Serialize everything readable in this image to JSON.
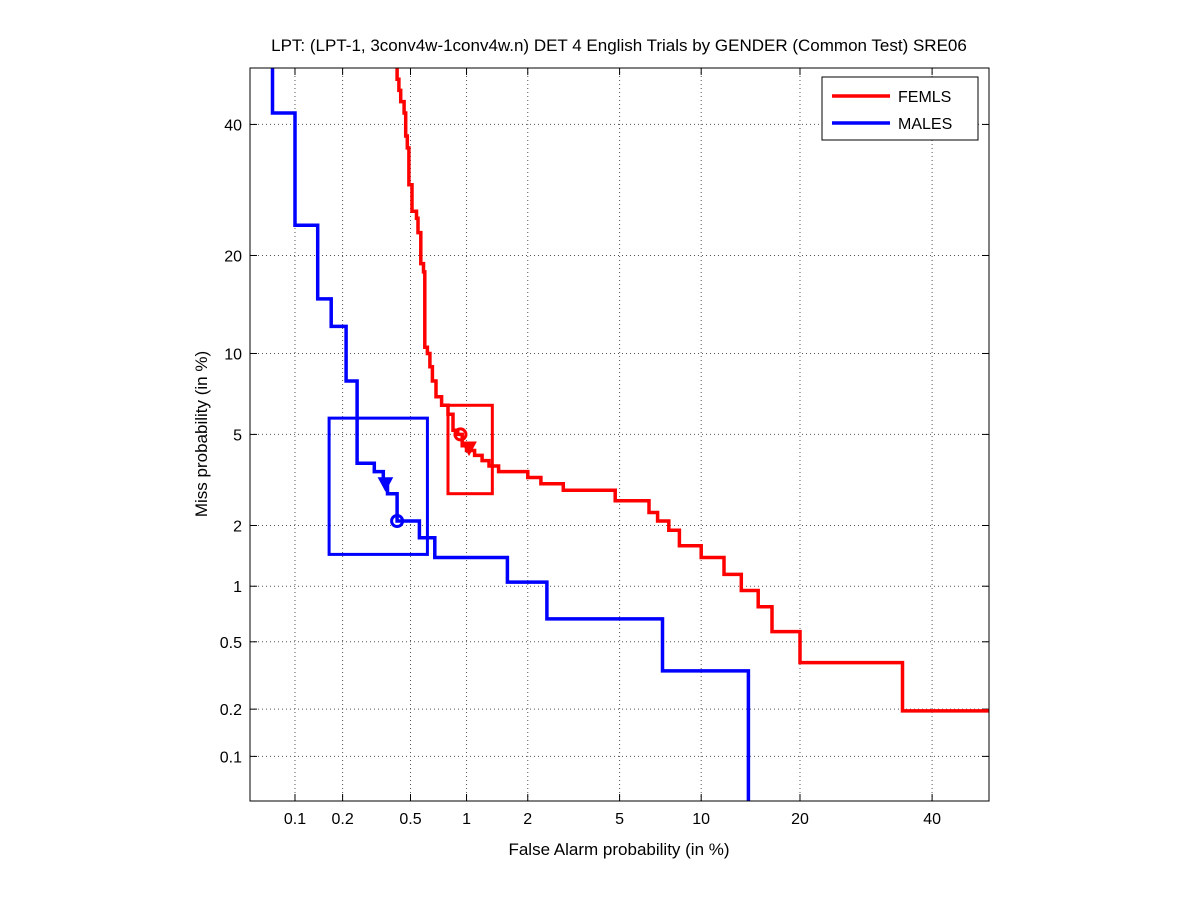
{
  "chart_data": {
    "type": "line",
    "subtype": "DET curve (normal deviate scale)",
    "title": "LPT: (LPT-1, 3conv4w-1conv4w.n) DET 4 English Trials by GENDER (Common Test) SRE06",
    "xlabel": "False Alarm probability (in %)",
    "ylabel": "Miss probability (in %)",
    "xlim": [
      0.05,
      50
    ],
    "ylim": [
      0.05,
      50
    ],
    "x_ticks": [
      0.1,
      0.2,
      0.5,
      1,
      2,
      5,
      10,
      20,
      40
    ],
    "x_tick_labels": [
      "0.1",
      "0.2",
      "0.5",
      "1",
      "2",
      "5",
      "10",
      "20",
      "40"
    ],
    "y_ticks": [
      0.1,
      0.2,
      0.5,
      1,
      2,
      5,
      10,
      20,
      40
    ],
    "y_tick_labels": [
      "0.1",
      "0.2",
      "0.5",
      "1",
      "2",
      "5",
      "10",
      "20",
      "40"
    ],
    "grid": true,
    "legend_position": "top-right",
    "series": [
      {
        "name": "FEMLS",
        "color": "#ff0000",
        "points": [
          [
            0.42,
            50
          ],
          [
            0.42,
            48
          ],
          [
            0.43,
            48
          ],
          [
            0.43,
            46
          ],
          [
            0.44,
            46
          ],
          [
            0.44,
            44
          ],
          [
            0.46,
            44
          ],
          [
            0.46,
            42
          ],
          [
            0.47,
            42
          ],
          [
            0.47,
            38
          ],
          [
            0.48,
            38
          ],
          [
            0.48,
            36
          ],
          [
            0.49,
            36
          ],
          [
            0.49,
            30
          ],
          [
            0.51,
            30
          ],
          [
            0.51,
            26
          ],
          [
            0.54,
            26
          ],
          [
            0.54,
            25
          ],
          [
            0.55,
            25
          ],
          [
            0.55,
            23
          ],
          [
            0.57,
            23
          ],
          [
            0.57,
            19
          ],
          [
            0.59,
            19
          ],
          [
            0.59,
            18
          ],
          [
            0.6,
            18
          ],
          [
            0.6,
            10.5
          ],
          [
            0.62,
            10.5
          ],
          [
            0.62,
            10
          ],
          [
            0.64,
            10
          ],
          [
            0.64,
            9
          ],
          [
            0.66,
            9
          ],
          [
            0.66,
            8
          ],
          [
            0.69,
            8
          ],
          [
            0.69,
            7
          ],
          [
            0.74,
            7
          ],
          [
            0.74,
            6.5
          ],
          [
            0.8,
            6.5
          ],
          [
            0.8,
            6
          ],
          [
            0.85,
            6
          ],
          [
            0.85,
            5.2
          ],
          [
            0.9,
            5.2
          ],
          [
            0.9,
            5
          ],
          [
            0.95,
            5
          ],
          [
            0.95,
            4.5
          ],
          [
            1.0,
            4.5
          ],
          [
            1.0,
            4.3
          ],
          [
            1.1,
            4.3
          ],
          [
            1.1,
            4.1
          ],
          [
            1.2,
            4.1
          ],
          [
            1.2,
            3.9
          ],
          [
            1.3,
            3.9
          ],
          [
            1.3,
            3.7
          ],
          [
            1.45,
            3.7
          ],
          [
            1.45,
            3.5
          ],
          [
            2.0,
            3.5
          ],
          [
            2.0,
            3.3
          ],
          [
            2.3,
            3.3
          ],
          [
            2.3,
            3.1
          ],
          [
            2.9,
            3.1
          ],
          [
            2.9,
            2.9
          ],
          [
            4.8,
            2.9
          ],
          [
            4.8,
            2.6
          ],
          [
            6.5,
            2.6
          ],
          [
            6.5,
            2.3
          ],
          [
            7.0,
            2.3
          ],
          [
            7.0,
            2.1
          ],
          [
            7.7,
            2.1
          ],
          [
            7.7,
            1.9
          ],
          [
            8.4,
            1.9
          ],
          [
            8.4,
            1.6
          ],
          [
            10.0,
            1.6
          ],
          [
            10.0,
            1.4
          ],
          [
            11.9,
            1.4
          ],
          [
            11.9,
            1.15
          ],
          [
            13.5,
            1.15
          ],
          [
            13.5,
            0.95
          ],
          [
            15.2,
            0.95
          ],
          [
            15.2,
            0.78
          ],
          [
            16.7,
            0.78
          ],
          [
            16.7,
            0.57
          ],
          [
            20.0,
            0.57
          ],
          [
            20.0,
            0.38
          ],
          [
            35.0,
            0.38
          ],
          [
            35.0,
            0.195
          ],
          [
            50,
            0.195
          ]
        ],
        "actual_decision_marker": {
          "x": 1.03,
          "y": 4.4,
          "shape": "triangle-down"
        },
        "min_dcf_marker": {
          "x": 0.93,
          "y": 5.0,
          "shape": "circle"
        },
        "confidence_box": {
          "x": [
            0.8,
            1.35
          ],
          "y": [
            2.8,
            6.5
          ]
        }
      },
      {
        "name": "MALES",
        "color": "#0000ff",
        "points": [
          [
            0.071,
            50
          ],
          [
            0.071,
            42
          ],
          [
            0.1,
            42
          ],
          [
            0.1,
            24
          ],
          [
            0.14,
            24
          ],
          [
            0.14,
            15
          ],
          [
            0.17,
            15
          ],
          [
            0.17,
            12.3
          ],
          [
            0.21,
            12.3
          ],
          [
            0.21,
            8
          ],
          [
            0.245,
            8
          ],
          [
            0.245,
            3.8
          ],
          [
            0.31,
            3.8
          ],
          [
            0.31,
            3.5
          ],
          [
            0.35,
            3.5
          ],
          [
            0.35,
            3.2
          ],
          [
            0.37,
            3.2
          ],
          [
            0.37,
            2.8
          ],
          [
            0.42,
            2.8
          ],
          [
            0.42,
            2.1
          ],
          [
            0.56,
            2.1
          ],
          [
            0.56,
            1.75
          ],
          [
            0.68,
            1.75
          ],
          [
            0.68,
            1.4
          ],
          [
            1.6,
            1.4
          ],
          [
            1.6,
            1.05
          ],
          [
            2.45,
            1.05
          ],
          [
            2.45,
            0.67
          ],
          [
            7.3,
            0.67
          ],
          [
            7.3,
            0.34
          ],
          [
            14.2,
            0.34
          ],
          [
            14.2,
            0.05
          ]
        ],
        "actual_decision_marker": {
          "x": 0.36,
          "y": 3.1,
          "shape": "triangle-down"
        },
        "min_dcf_marker": {
          "x": 0.42,
          "y": 2.1,
          "shape": "circle"
        },
        "confidence_box": {
          "x": [
            0.165,
            0.62
          ],
          "y": [
            1.45,
            5.8
          ]
        }
      }
    ]
  }
}
